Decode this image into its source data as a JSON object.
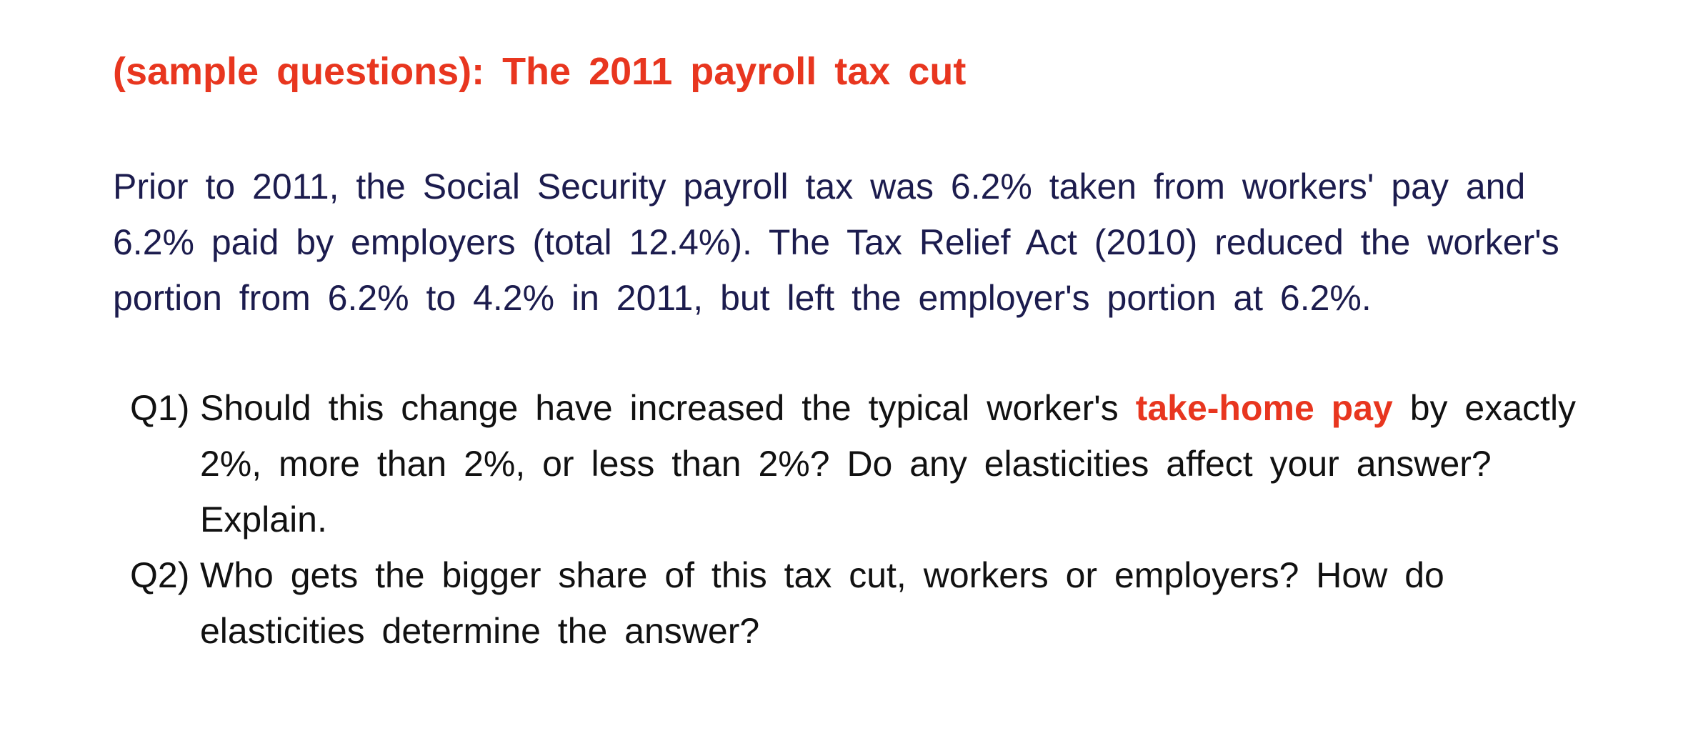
{
  "colors": {
    "title": "#E8361F",
    "intro_text": "#1C1C4E",
    "question_text": "#111111",
    "highlight": "#E8361F"
  },
  "title": "(sample questions): The 2011 payroll tax cut",
  "intro": {
    "lines": [
      "Prior to 2011, the Social Security payroll tax was 6.2% taken from workers' pay and",
      "6.2% paid by employers (total 12.4%). The Tax Relief Act (2010) reduced the worker's",
      "portion from 6.2% to 4.2% in 2011, but left the employer's portion at 6.2%."
    ]
  },
  "questions": [
    {
      "number": "Q1)",
      "line1_before": "Should this change have increased the typical worker's",
      "line1_highlight": "take-home pay",
      "line1_after": "by exactly",
      "line2": "2%, more than 2%, or less than 2%? Do any elasticities affect your answer?",
      "line3": "Explain."
    },
    {
      "number": "Q2)",
      "line1": "Who gets the bigger share of this tax cut, workers or employers?  How do",
      "line2": "elasticities determine the answer?"
    }
  ]
}
